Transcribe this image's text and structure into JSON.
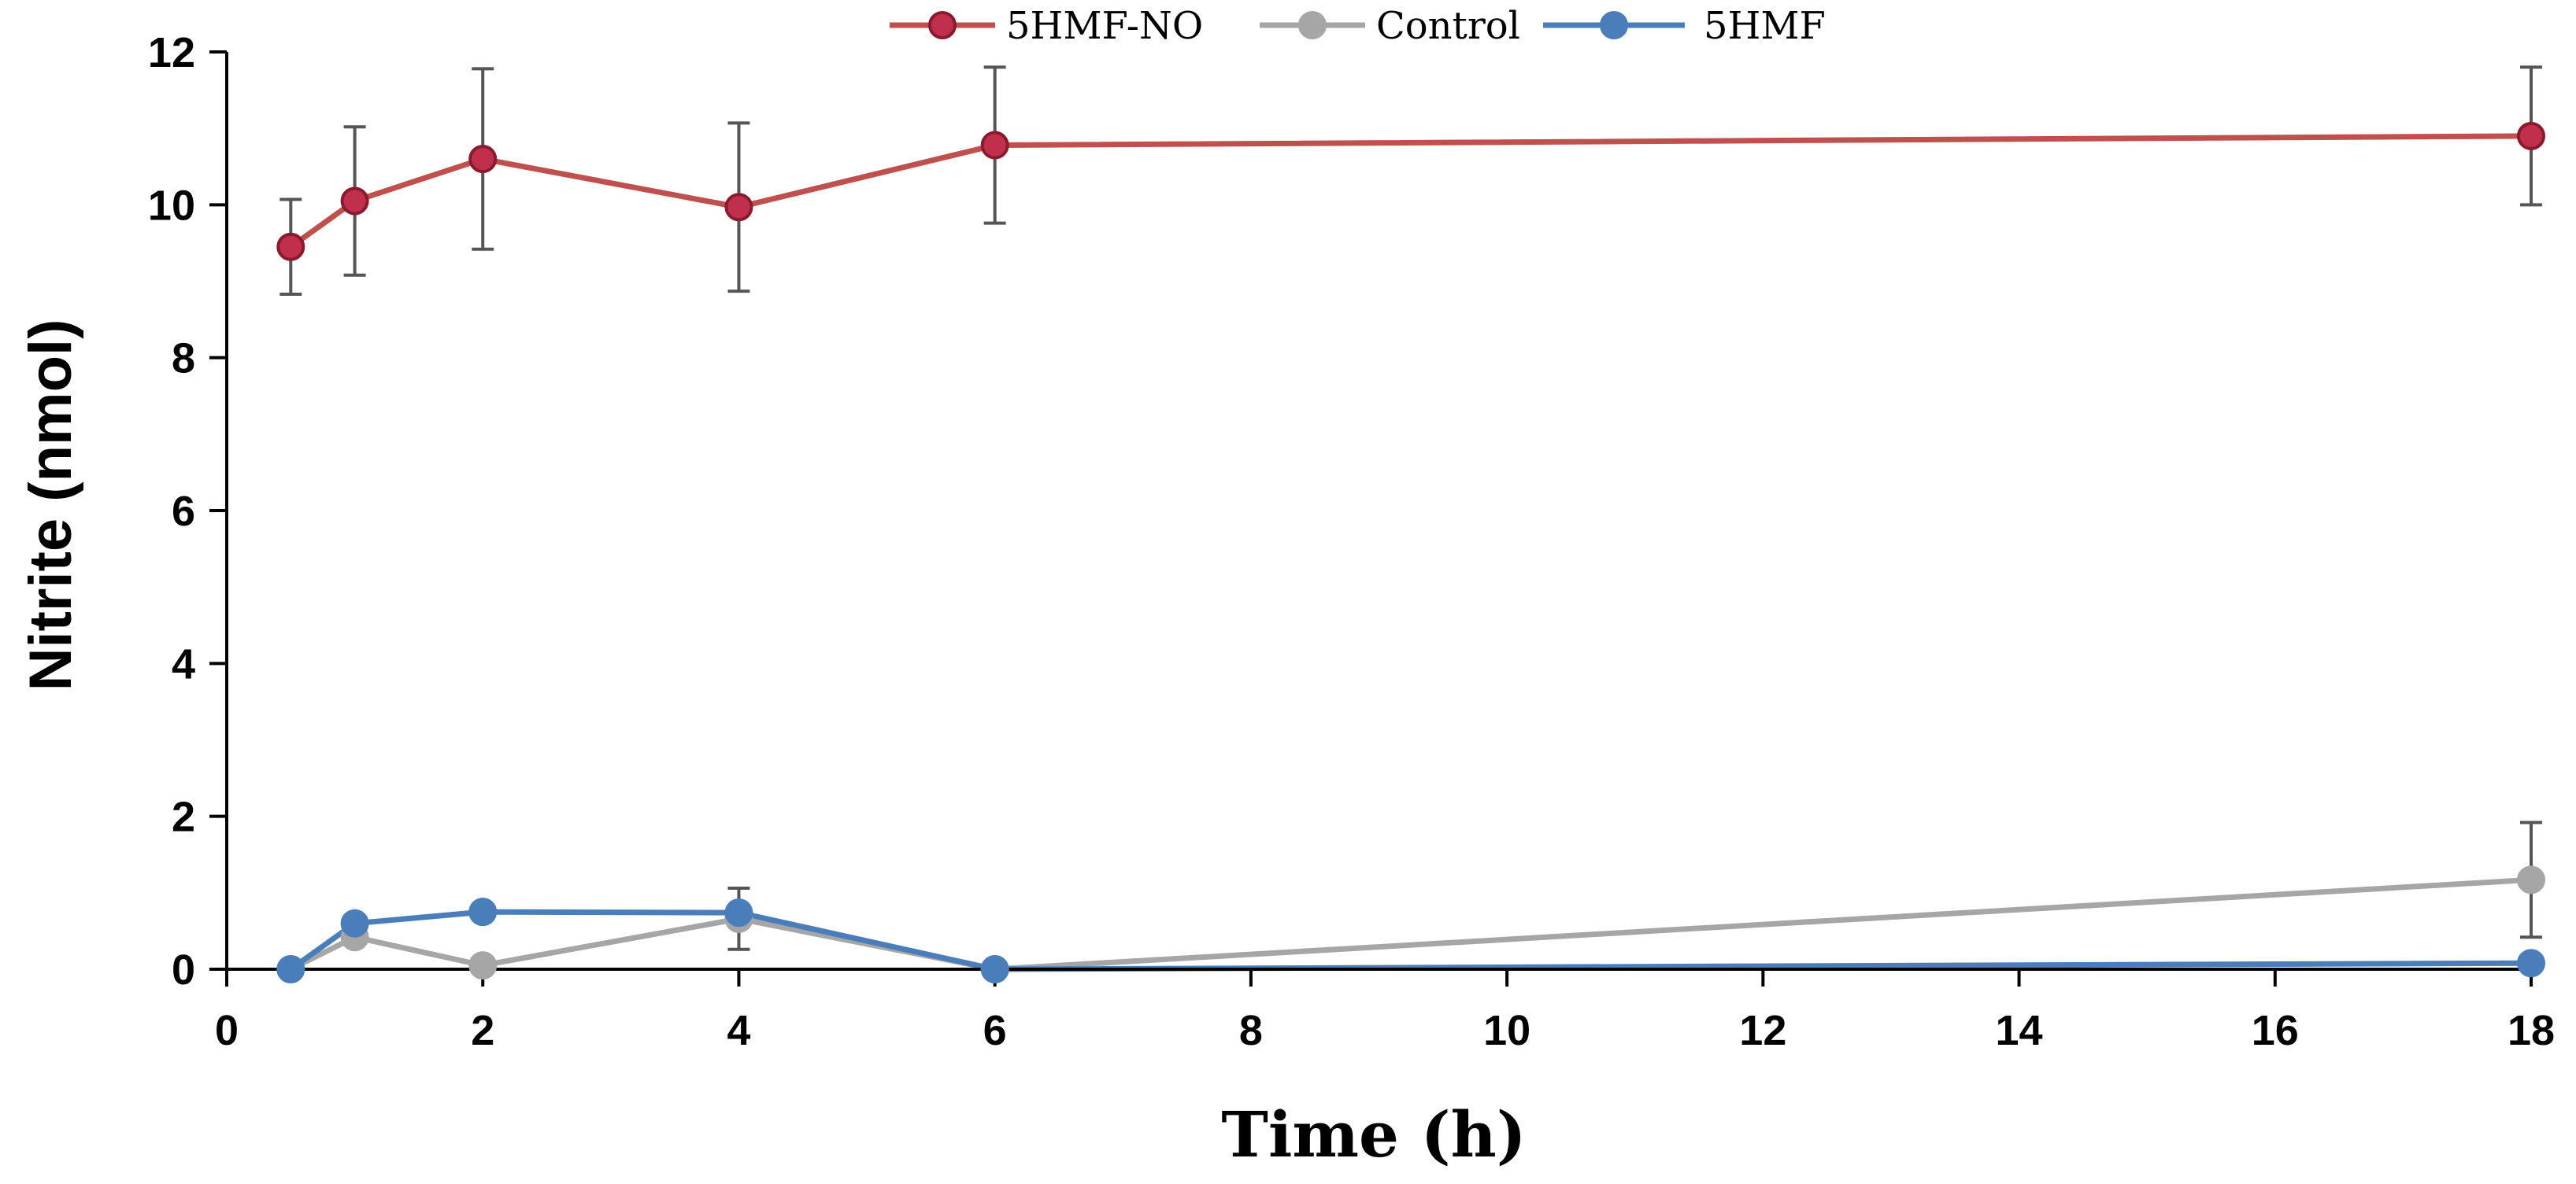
{
  "chart_data": {
    "type": "line",
    "title": "",
    "xlabel": "Time (h)",
    "ylabel": "Nitrite (nmol)",
    "xlim": [
      0,
      18
    ],
    "ylim": [
      0,
      12
    ],
    "x_ticks": [
      0,
      2,
      4,
      6,
      8,
      10,
      12,
      14,
      16,
      18
    ],
    "y_ticks": [
      0,
      2,
      4,
      6,
      8,
      10,
      12
    ],
    "grid": false,
    "legend_position": "top",
    "series": [
      {
        "name": "5HMF-NO",
        "color": "#c0504d",
        "marker_fill": "#c0304d",
        "marker_stroke": "#8b1a2e",
        "x": [
          0.5,
          1,
          2,
          4,
          6,
          18
        ],
        "values": [
          9.45,
          10.05,
          10.6,
          9.97,
          10.78,
          10.9
        ],
        "errors": [
          0.62,
          0.97,
          1.18,
          1.1,
          1.02,
          0.9
        ]
      },
      {
        "name": "Control",
        "color": "#a6a6a6",
        "marker_fill": "#a6a6a6",
        "marker_stroke": "#a6a6a6",
        "x": [
          0.5,
          1,
          2,
          4,
          6,
          18
        ],
        "values": [
          0.0,
          0.42,
          0.05,
          0.66,
          0.0,
          1.17
        ],
        "errors": [
          0,
          0,
          0,
          0.4,
          0,
          0.75
        ]
      },
      {
        "name": "5HMF",
        "color": "#4a7ebb",
        "marker_fill": "#4a7ebb",
        "marker_stroke": "#4a7ebb",
        "x": [
          0.5,
          1,
          2,
          4,
          6,
          18
        ],
        "values": [
          0.0,
          0.6,
          0.75,
          0.74,
          0.0,
          0.08
        ],
        "errors": [
          0,
          0,
          0,
          0,
          0,
          0
        ]
      }
    ]
  }
}
